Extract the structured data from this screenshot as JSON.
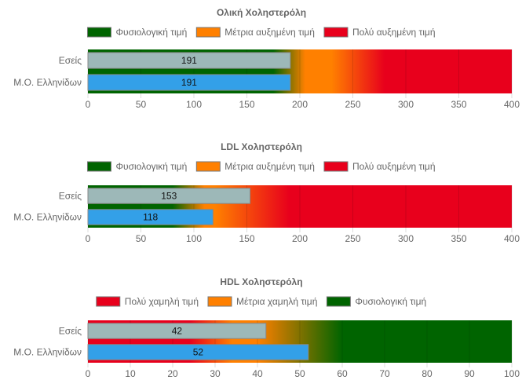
{
  "colors": {
    "green": "#006400",
    "orange": "#ff8000",
    "red": "#e8001c",
    "bar_you": "#9db8b8",
    "bar_avg": "#33a0e8"
  },
  "chart_data": [
    {
      "type": "bar",
      "orientation": "horizontal",
      "title": "Ολική Χοληστερόλη",
      "categories": [
        "Εσείς",
        "Μ.Ο. Ελληνίδων"
      ],
      "values": [
        191,
        191
      ],
      "xlim": [
        0,
        400
      ],
      "ticks": [
        0,
        50,
        100,
        150,
        200,
        250,
        300,
        350,
        400
      ],
      "grid": true,
      "legend_position": "top",
      "legend": [
        {
          "label": "Φυσιολογική τιμή",
          "color": "#006400"
        },
        {
          "label": "Μέτρια αυξημένη τιμή",
          "color": "#ff8000"
        },
        {
          "label": "Πολύ αυξημένη τιμή",
          "color": "#e8001c"
        }
      ],
      "background_zones": [
        {
          "color": "#006400",
          "from": 0,
          "to": 175
        },
        {
          "color": "#ff8000",
          "from": 205,
          "to": 230
        },
        {
          "color": "#e8001c",
          "from": 280,
          "to": 400
        }
      ]
    },
    {
      "type": "bar",
      "orientation": "horizontal",
      "title": "LDL Χοληστερόλη",
      "categories": [
        "Εσείς",
        "Μ.Ο. Ελληνίδων"
      ],
      "values": [
        153,
        118
      ],
      "xlim": [
        0,
        400
      ],
      "ticks": [
        0,
        50,
        100,
        150,
        200,
        250,
        300,
        350,
        400
      ],
      "grid": true,
      "legend_position": "top",
      "legend": [
        {
          "label": "Φυσιολογική τιμή",
          "color": "#006400"
        },
        {
          "label": "Μέτρια αυξημένη τιμή",
          "color": "#ff8000"
        },
        {
          "label": "Πολύ αυξημένη τιμή",
          "color": "#e8001c"
        }
      ],
      "background_zones": [
        {
          "color": "#006400",
          "from": 0,
          "to": 80
        },
        {
          "color": "#ff8000",
          "from": 110,
          "to": 120
        },
        {
          "color": "#e8001c",
          "from": 190,
          "to": 400
        }
      ]
    },
    {
      "type": "bar",
      "orientation": "horizontal",
      "title": "HDL Χοληστερόλη",
      "categories": [
        "Εσείς",
        "Μ.Ο. Ελληνίδων"
      ],
      "values": [
        42,
        52
      ],
      "xlim": [
        0,
        100
      ],
      "ticks": [
        0,
        10,
        20,
        30,
        40,
        50,
        60,
        70,
        80,
        90,
        100
      ],
      "grid": true,
      "legend_position": "top",
      "legend": [
        {
          "label": "Πολύ χαμηλή τιμή",
          "color": "#e8001c"
        },
        {
          "label": "Μέτρια χαμηλή τιμή",
          "color": "#ff8000"
        },
        {
          "label": "Φυσιολογική τιμή",
          "color": "#006400"
        }
      ],
      "background_zones": [
        {
          "color": "#e8001c",
          "from": 0,
          "to": 24
        },
        {
          "color": "#ff8000",
          "from": 34,
          "to": 40
        },
        {
          "color": "#006400",
          "from": 60,
          "to": 100
        }
      ]
    }
  ]
}
